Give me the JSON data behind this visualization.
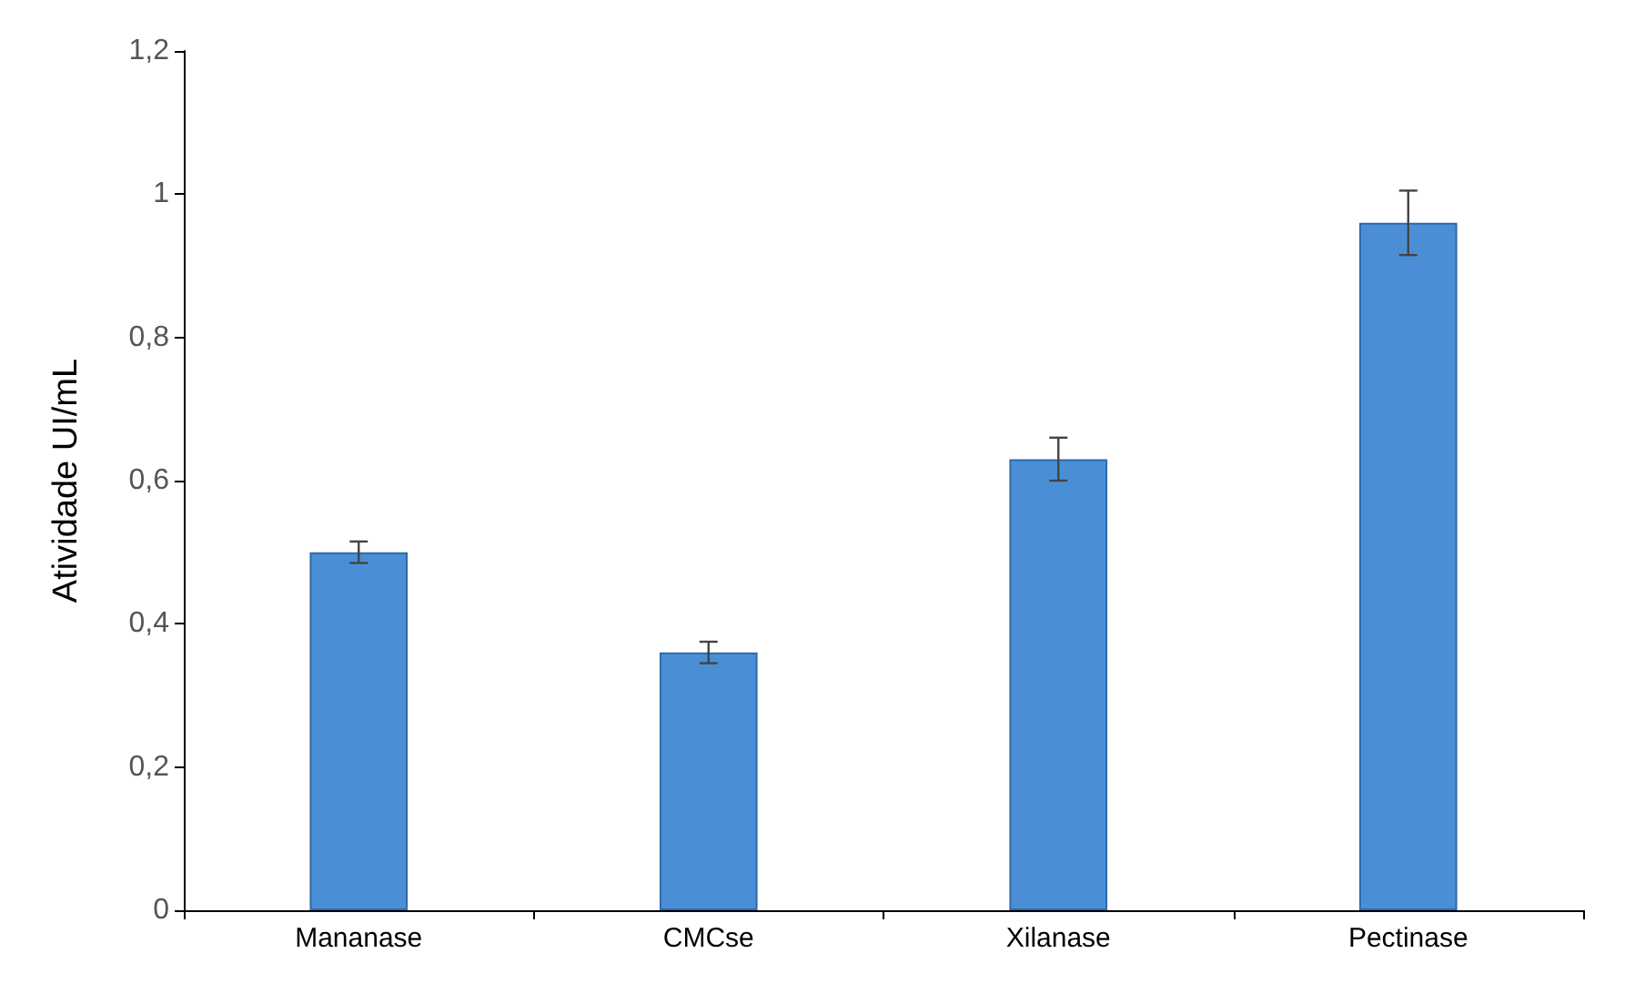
{
  "chart_data": {
    "type": "bar",
    "ylabel": "Atividade UI/mL",
    "categories": [
      "Mananase",
      "CMCse",
      "Xilanase",
      "Pectinase"
    ],
    "values": [
      0.5,
      0.36,
      0.63,
      0.96
    ],
    "errors": [
      0.015,
      0.015,
      0.03,
      0.045
    ],
    "color": "#4a8fd6",
    "ylim": [
      0,
      1.2
    ],
    "yticks": [
      0,
      {
        "value": 0.2,
        "label": "0,2"
      },
      {
        "value": 0.4,
        "label": "0,4"
      },
      {
        "value": 0.6,
        "label": "0,6"
      },
      {
        "value": 0.8,
        "label": "0,8"
      },
      1,
      {
        "value": 1.2,
        "label": "1,2"
      }
    ],
    "grid": false
  }
}
